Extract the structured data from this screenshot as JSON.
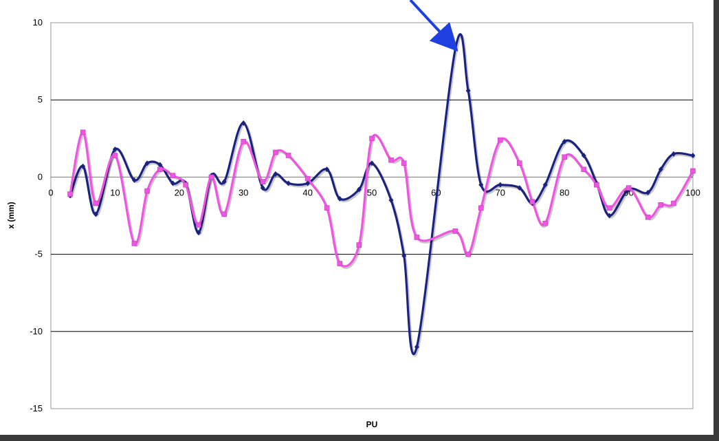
{
  "chart_data": {
    "type": "line",
    "title": "",
    "xlabel": "PU",
    "ylabel": "x (mm)",
    "xlim": [
      0,
      100
    ],
    "ylim": [
      -15,
      10
    ],
    "x_ticks": [
      0,
      10,
      20,
      30,
      40,
      50,
      60,
      70,
      80,
      90,
      100
    ],
    "y_ticks": [
      10,
      5,
      0,
      -5,
      -10,
      -15
    ],
    "grid": "horizontal",
    "legend": "none",
    "series": [
      {
        "color": "#1a237e",
        "marker": "diamond",
        "x": [
          3,
          5,
          7,
          10,
          13,
          15,
          17,
          19,
          21,
          23,
          25,
          27,
          30,
          33,
          35,
          37,
          40,
          43,
          45,
          48,
          50,
          53,
          55,
          57,
          63,
          65,
          67,
          70,
          73,
          75,
          77,
          80,
          83,
          85,
          87,
          90,
          93,
          95,
          97,
          100
        ],
        "y": [
          -1.2,
          0.7,
          -2.4,
          1.8,
          -0.2,
          0.9,
          0.8,
          -0.4,
          -0.4,
          -3.6,
          0.1,
          -0.3,
          3.5,
          -0.7,
          0.2,
          -0.4,
          -0.4,
          0.5,
          -1.4,
          -0.8,
          0.9,
          -1.5,
          -5.1,
          -11.0,
          8.3,
          5.6,
          -0.5,
          -0.5,
          -0.7,
          -1.7,
          -0.5,
          2.3,
          1.4,
          -0.4,
          -2.5,
          -0.8,
          -1.0,
          0.5,
          1.5,
          1.4
        ]
      },
      {
        "color": "#ee55e0",
        "marker": "square",
        "x": [
          3,
          5,
          7,
          10,
          13,
          15,
          17,
          19,
          21,
          23,
          25,
          27,
          30,
          33,
          35,
          37,
          40,
          43,
          45,
          48,
          50,
          53,
          55,
          57,
          63,
          65,
          67,
          70,
          73,
          75,
          77,
          80,
          83,
          85,
          87,
          90,
          93,
          95,
          97,
          100
        ],
        "y": [
          -1.1,
          2.9,
          -1.7,
          1.4,
          -4.3,
          -0.9,
          0.5,
          0.1,
          -0.5,
          -3.1,
          0.0,
          -2.4,
          2.3,
          -0.3,
          1.6,
          1.4,
          -0.1,
          -2.0,
          -5.6,
          -4.4,
          2.5,
          1.1,
          0.9,
          -3.9,
          -3.5,
          -5.0,
          -2.0,
          2.4,
          0.9,
          -1.6,
          -3.0,
          1.3,
          0.5,
          -0.5,
          -2.0,
          -0.7,
          -2.6,
          -1.8,
          -1.7,
          0.4
        ]
      }
    ],
    "annotations": [
      {
        "type": "arrow",
        "color": "#1f3fe0",
        "points_to": {
          "x": 63,
          "y": 8.3
        }
      }
    ]
  }
}
